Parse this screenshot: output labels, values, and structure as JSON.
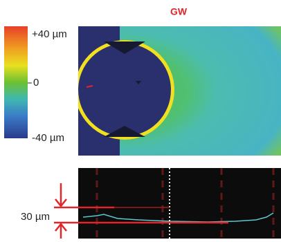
{
  "title": "GW",
  "colorbar": {
    "labels": [
      "+40 µm",
      "0",
      "-40 µm"
    ]
  },
  "profile": {
    "label": "30 µm"
  }
}
